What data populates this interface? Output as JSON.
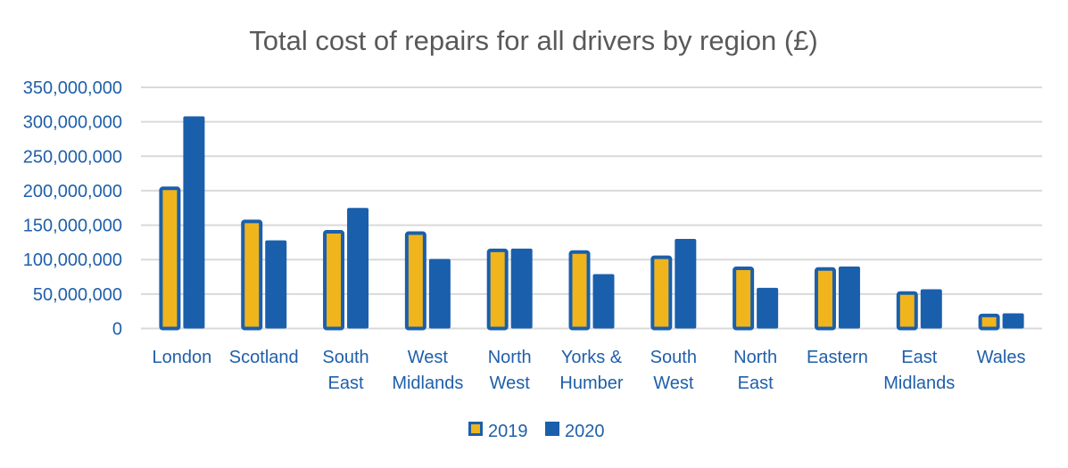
{
  "chart_data": {
    "type": "bar",
    "title": "Total cost of repairs for all drivers by region (£)",
    "xlabel": "",
    "ylabel": "",
    "ylim": [
      0,
      350000000
    ],
    "yticks": [
      0,
      50000000,
      100000000,
      150000000,
      200000000,
      250000000,
      300000000,
      350000000
    ],
    "ytick_labels": [
      "0",
      "50,000,000",
      "100,000,000",
      "150,000,000",
      "200,000,000",
      "250,000,000",
      "300,000,000",
      "350,000,000"
    ],
    "grid": true,
    "legend_position": "bottom",
    "categories": [
      [
        "London"
      ],
      [
        "Scotland"
      ],
      [
        "South",
        "East"
      ],
      [
        "West",
        "Midlands"
      ],
      [
        "North",
        "West"
      ],
      [
        "Yorks &",
        "Humber"
      ],
      [
        "South",
        "West"
      ],
      [
        "North",
        "East"
      ],
      [
        "Eastern"
      ],
      [
        "East",
        "Midlands"
      ],
      [
        "Wales"
      ]
    ],
    "series": [
      {
        "name": "2019",
        "color": "#F0B41C",
        "border": "#1A5FAC",
        "values": [
          206000000,
          158000000,
          143000000,
          141000000,
          116000000,
          113500000,
          106000000,
          90000000,
          89000000,
          54000000,
          21500000
        ]
      },
      {
        "name": "2020",
        "color": "#1A5FAC",
        "values": [
          308000000,
          128000000,
          175000000,
          101000000,
          116000000,
          79000000,
          130000000,
          59000000,
          90000000,
          57000000,
          22000000
        ]
      }
    ],
    "colors": {
      "text": "#1F5FAA",
      "title": "#595959",
      "grid": "#D9D9D9"
    }
  }
}
